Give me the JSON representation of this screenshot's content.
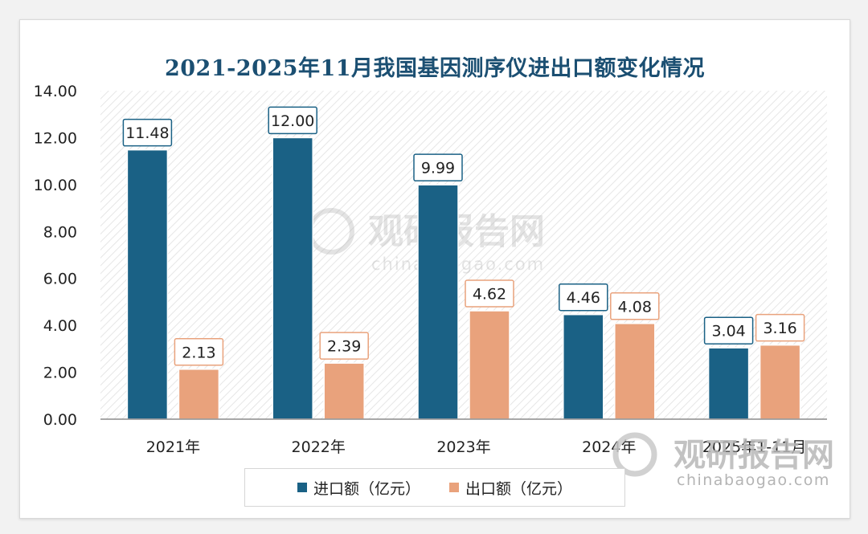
{
  "chart_data": {
    "type": "bar",
    "title": "2021-2025年11月我国基因测序仪进出口额变化情况",
    "categories": [
      "2021年",
      "2022年",
      "2023年",
      "2024年",
      "2025年1-11月"
    ],
    "series": [
      {
        "name": "进口额（亿元）",
        "color": "#1a6185",
        "label_border": "#1a6185",
        "values": [
          11.48,
          12.0,
          9.99,
          4.46,
          3.04
        ]
      },
      {
        "name": "出口额（亿元）",
        "color": "#e9a27c",
        "label_border": "#e9a27c",
        "values": [
          2.13,
          2.39,
          4.62,
          4.08,
          3.16
        ]
      }
    ],
    "ylim": [
      0,
      14
    ],
    "yticks": [
      "0.00",
      "2.00",
      "4.00",
      "6.00",
      "8.00",
      "10.00",
      "12.00",
      "14.00"
    ],
    "value_format_decimals": 2,
    "legend_position": "bottom",
    "xlabel": "",
    "ylabel": ""
  },
  "watermark": {
    "brand": "观研报告网",
    "url": "chinabaogao.com"
  }
}
